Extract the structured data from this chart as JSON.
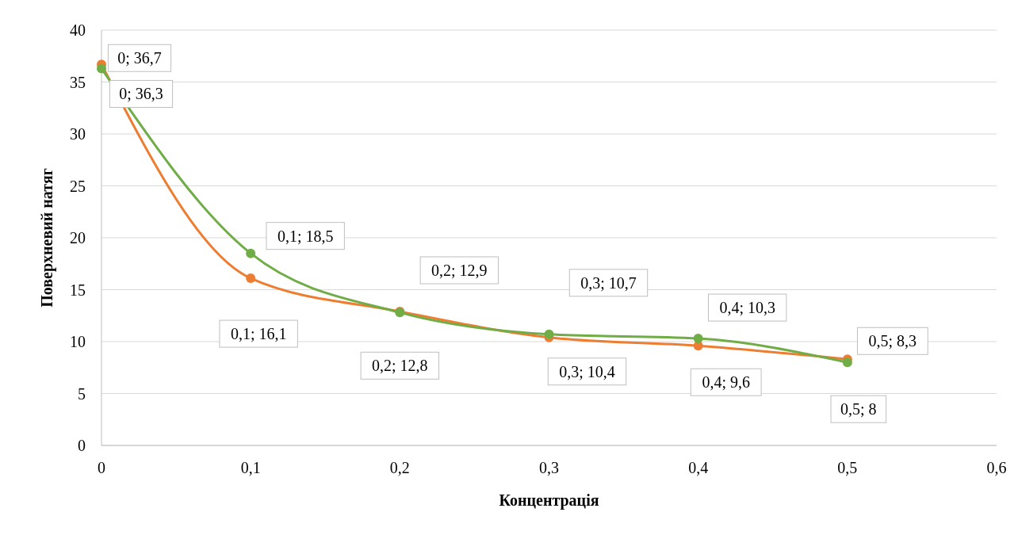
{
  "chart_data": {
    "type": "line",
    "xlabel": "Концентрація",
    "ylabel": "Поверхневий натяг",
    "x": [
      0,
      0.1,
      0.2,
      0.3,
      0.4,
      0.5
    ],
    "series": [
      {
        "color": "#ed7d31",
        "values": [
          36.7,
          16.1,
          12.9,
          10.4,
          9.6,
          8.3
        ],
        "value_labels": [
          "0; 36,7",
          "0,1; 16,1",
          "0,2; 12,9",
          "0,3; 10,4",
          "0,4; 9,6",
          "0,5; 8,3"
        ]
      },
      {
        "color": "#70ad47",
        "values": [
          36.3,
          18.5,
          12.8,
          10.7,
          10.3,
          8
        ],
        "value_labels": [
          "0; 36,3",
          "0,1; 18,5",
          "0,2; 12,8",
          "0,3; 10,7",
          "0,4; 10,3",
          "0,5; 8"
        ]
      }
    ],
    "xlim": [
      0,
      0.6
    ],
    "xticks": [
      0,
      {
        "value": 0.1,
        "label": "0,1"
      },
      {
        "value": 0.2,
        "label": "0,2"
      },
      {
        "value": 0.3,
        "label": "0,3"
      },
      {
        "value": 0.4,
        "label": "0,4"
      },
      {
        "value": 0.5,
        "label": "0,5"
      },
      {
        "value": 0.6,
        "label": "0,6"
      }
    ],
    "ylim": [
      0,
      40
    ],
    "yticks": [
      0,
      5,
      10,
      15,
      20,
      25,
      30,
      35,
      40
    ],
    "grid": "y",
    "marker": "circle"
  }
}
